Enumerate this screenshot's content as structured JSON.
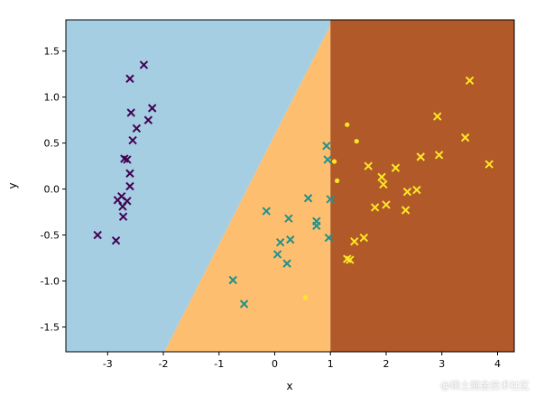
{
  "chart_data": {
    "type": "scatter",
    "title": "",
    "xlabel": "x",
    "ylabel": "y",
    "xlim": [
      -3.75,
      4.3
    ],
    "ylim": [
      -1.77,
      1.84
    ],
    "xticks": [
      -3,
      -2,
      -1,
      0,
      1,
      2,
      3,
      4
    ],
    "yticks": [
      -1.5,
      -1.0,
      -0.5,
      0.0,
      0.5,
      1.0,
      1.5
    ],
    "xtick_labels": [
      "-3",
      "-2",
      "-1",
      "0",
      "1",
      "2",
      "3",
      "4"
    ],
    "ytick_labels": [
      "-1.5",
      "-1.0",
      "-0.5",
      "0.0",
      "0.5",
      "1.0",
      "1.5"
    ],
    "grid": false,
    "decision_regions": {
      "colors": [
        "#a6cee3",
        "#fdbf6f",
        "#b15928"
      ],
      "boundary_left_points": [
        [
          -1.98,
          -1.77
        ],
        [
          1.05,
          1.84
        ]
      ],
      "boundary_right_x": 1.0
    },
    "series": [
      {
        "marker": "x",
        "color": "#440154",
        "points": [
          [
            -3.18,
            -0.5
          ],
          [
            -2.85,
            -0.56
          ],
          [
            -2.82,
            -0.12
          ],
          [
            -2.75,
            -0.08
          ],
          [
            -2.73,
            -0.19
          ],
          [
            -2.72,
            -0.3
          ],
          [
            -2.7,
            0.33
          ],
          [
            -2.65,
            0.32
          ],
          [
            -2.65,
            -0.13
          ],
          [
            -2.6,
            0.17
          ],
          [
            -2.6,
            0.03
          ],
          [
            -2.58,
            0.83
          ],
          [
            -2.6,
            1.2
          ],
          [
            -2.55,
            0.53
          ],
          [
            -2.48,
            0.66
          ],
          [
            -2.35,
            1.35
          ],
          [
            -2.27,
            0.75
          ],
          [
            -2.2,
            0.88
          ]
        ]
      },
      {
        "marker": "x",
        "color": "#21918c",
        "points": [
          [
            -0.75,
            -0.99
          ],
          [
            -0.55,
            -1.25
          ],
          [
            -0.15,
            -0.24
          ],
          [
            0.05,
            -0.71
          ],
          [
            0.1,
            -0.58
          ],
          [
            0.22,
            -0.81
          ],
          [
            0.25,
            -0.32
          ],
          [
            0.28,
            -0.55
          ],
          [
            0.6,
            -0.1
          ],
          [
            0.75,
            -0.35
          ],
          [
            0.75,
            -0.4
          ],
          [
            0.93,
            0.47
          ],
          [
            0.95,
            0.32
          ],
          [
            0.97,
            -0.53
          ],
          [
            1.0,
            -0.11
          ]
        ]
      },
      {
        "marker": "x",
        "color": "#fde725",
        "points": [
          [
            1.3,
            -0.76
          ],
          [
            1.35,
            -0.77
          ],
          [
            1.43,
            -0.57
          ],
          [
            1.6,
            -0.53
          ],
          [
            1.68,
            0.25
          ],
          [
            1.8,
            -0.2
          ],
          [
            1.92,
            0.13
          ],
          [
            1.95,
            0.05
          ],
          [
            2.0,
            -0.17
          ],
          [
            2.17,
            0.23
          ],
          [
            2.35,
            -0.23
          ],
          [
            2.38,
            -0.03
          ],
          [
            2.55,
            -0.01
          ],
          [
            2.62,
            0.35
          ],
          [
            2.92,
            0.79
          ],
          [
            2.95,
            0.37
          ],
          [
            3.42,
            0.56
          ],
          [
            3.5,
            1.18
          ],
          [
            3.85,
            0.27
          ]
        ]
      },
      {
        "marker": "o",
        "color": "#fde725",
        "points": [
          [
            0.55,
            -1.18
          ],
          [
            1.07,
            0.3
          ],
          [
            1.12,
            0.09
          ],
          [
            1.3,
            0.7
          ],
          [
            1.47,
            0.52
          ]
        ]
      }
    ]
  },
  "watermark": "@稀土掘金技术社区"
}
